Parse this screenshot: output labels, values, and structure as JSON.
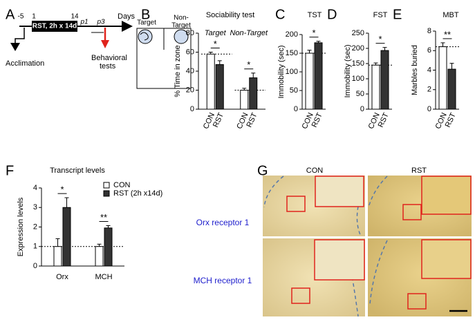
{
  "panel_labels": [
    "A",
    "B",
    "C",
    "D",
    "E",
    "F",
    "G"
  ],
  "timeline": {
    "day_labels": [
      "-5",
      "1",
      "14"
    ],
    "box": "RST, 2h x 14d",
    "p1": "p1",
    "p3": "p3",
    "days": "Days",
    "acclimation": "Acclimation",
    "behavioral": [
      "Behavioral",
      "tests"
    ]
  },
  "arena": {
    "target": "Target",
    "non_target": [
      "Non-",
      "Target"
    ]
  },
  "chart_data": [
    {
      "type": "bar",
      "title": "Sociability test",
      "y_label": "% Time in zone",
      "categories": [
        "Target",
        "Non-Target"
      ],
      "series": [
        {
          "name": "CON",
          "color": "#ffffff",
          "values": [
            58,
            20
          ],
          "errors": [
            2,
            2
          ]
        },
        {
          "name": "RST",
          "color": "#333333",
          "values": [
            47,
            33
          ],
          "errors": [
            4,
            5
          ]
        }
      ],
      "significance": [
        "*",
        "*"
      ],
      "reference_lines": [
        58,
        20
      ],
      "ylim": [
        0,
        80
      ],
      "yticks": [
        0,
        20,
        40,
        60,
        80
      ]
    },
    {
      "type": "bar",
      "title": "TST",
      "y_label": "Immobility (sec)",
      "categories": [
        null
      ],
      "series": [
        {
          "name": "CON",
          "color": "#ffffff",
          "values": [
            150
          ],
          "errors": [
            8
          ]
        },
        {
          "name": "RST",
          "color": "#333333",
          "values": [
            178
          ],
          "errors": [
            4
          ]
        }
      ],
      "significance": [
        "*"
      ],
      "reference_lines": [
        150
      ],
      "ylim": [
        0,
        200
      ],
      "yticks": [
        0,
        50,
        100,
        150,
        200
      ]
    },
    {
      "type": "bar",
      "title": "FST",
      "y_label": "Immobility (sec)",
      "categories": [
        null
      ],
      "series": [
        {
          "name": "CON",
          "color": "#ffffff",
          "values": [
            145
          ],
          "errors": [
            7
          ]
        },
        {
          "name": "RST",
          "color": "#333333",
          "values": [
            193
          ],
          "errors": [
            10
          ]
        }
      ],
      "significance": [
        "*"
      ],
      "reference_lines": [
        145
      ],
      "ylim": [
        0,
        250
      ],
      "yticks": [
        0,
        50,
        100,
        150,
        200,
        250
      ]
    },
    {
      "type": "bar",
      "title": "MBT",
      "y_label": "Marbles buried",
      "categories": [
        null
      ],
      "series": [
        {
          "name": "CON",
          "color": "#ffffff",
          "values": [
            6.4
          ],
          "errors": [
            0.4
          ]
        },
        {
          "name": "RST",
          "color": "#333333",
          "values": [
            4.1
          ],
          "errors": [
            0.6
          ]
        }
      ],
      "significance": [
        "**"
      ],
      "reference_lines": [
        6.4
      ],
      "ylim": [
        0,
        8
      ],
      "yticks": [
        0,
        2,
        4,
        6,
        8
      ]
    },
    {
      "type": "bar",
      "title": "Transcript levels",
      "y_label": "Expression levels",
      "categories": [
        "Orx",
        "MCH"
      ],
      "series": [
        {
          "name": "CON",
          "color": "#ffffff",
          "values": [
            1.0,
            1.0
          ],
          "errors": [
            0.4,
            0.12
          ]
        },
        {
          "name": "RST (2h x14d)",
          "color": "#333333",
          "values": [
            3.0,
            1.95
          ],
          "errors": [
            0.5,
            0.12
          ]
        }
      ],
      "significance": [
        "*",
        "**"
      ],
      "reference_lines": [
        1
      ],
      "ylim": [
        0,
        4
      ],
      "yticks": [
        0,
        1,
        2,
        3,
        4
      ],
      "legend": "top-right"
    }
  ],
  "histology": {
    "columns": [
      "CON",
      "RST"
    ],
    "rows": [
      "Orx receptor 1",
      "MCH receptor 1"
    ]
  }
}
